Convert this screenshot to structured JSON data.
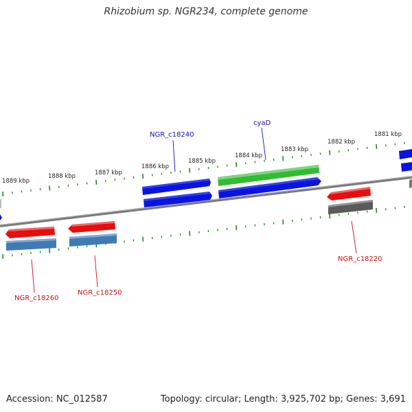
{
  "title": "Rhizobium sp. NGR234, complete genome",
  "footer": {
    "accession": "Accession: NC_012587",
    "summary": "Topology: circular; Length: 3,925,702 bp; Genes: 3,691"
  },
  "colors": {
    "backbone": "#808080",
    "ticks": "#1a8a1a",
    "tick_label": "#222222",
    "gene_blue": "#0a14e0",
    "gene_green": "#33bb33",
    "gene_red": "#e60e0e",
    "gene_steel": "#3f7ab5",
    "gene_gray": "#5a5a5a",
    "label_top": "#1010c0",
    "label_bottom": "#cc1010"
  },
  "tick_labels": [
    "1889 kbp",
    "1888 kbp",
    "1887 kbp",
    "1886 kbp",
    "1885 kbp",
    "1884 kbp",
    "1883 kbp",
    "1882 kbp",
    "1881 kbp"
  ],
  "gene_labels": {
    "top": [
      "NGR_c18240",
      "cyaD"
    ],
    "bottom": [
      "NGR_c18260",
      "NGR_c18250",
      "NGR_c18220"
    ]
  }
}
